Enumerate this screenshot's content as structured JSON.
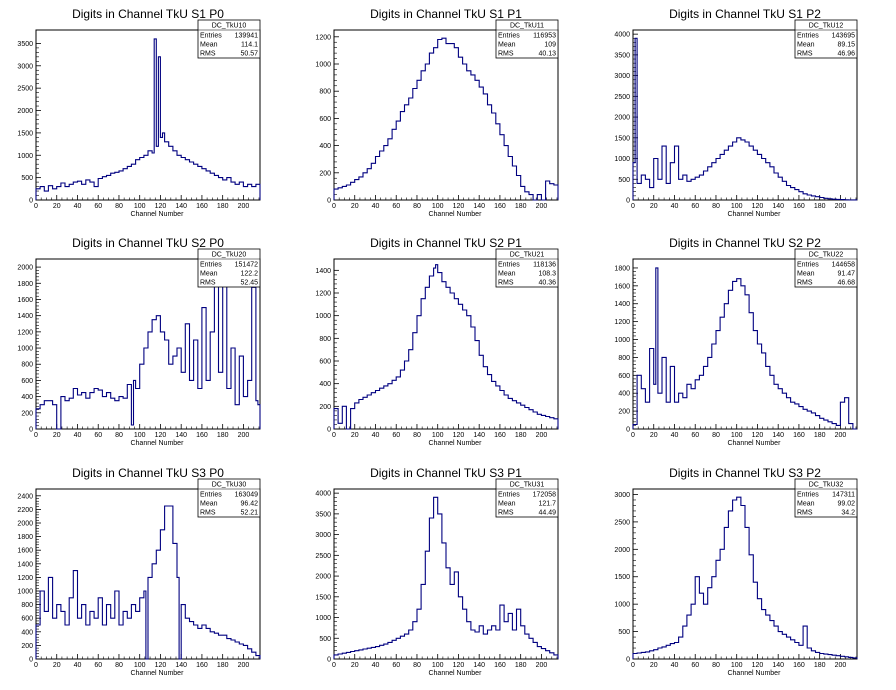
{
  "chart_data": [
    {
      "type": "histogram",
      "title": "Digits in Channel TkU S1 P0",
      "xlabel": "Channel Number",
      "ylabel": "",
      "xlim": [
        0,
        216
      ],
      "ylim": [
        0,
        3800
      ],
      "xticks": [
        0,
        20,
        40,
        60,
        80,
        100,
        120,
        140,
        160,
        180,
        200
      ],
      "yticks": [
        0,
        500,
        1000,
        1500,
        2000,
        2500,
        3000,
        3500
      ],
      "stats": {
        "name": "DC_TkU10",
        "entries": "139941",
        "mean": "114.1",
        "rms": "50.57"
      },
      "x": [
        0,
        4,
        8,
        12,
        16,
        20,
        24,
        28,
        32,
        36,
        40,
        44,
        48,
        52,
        56,
        60,
        64,
        68,
        72,
        76,
        80,
        84,
        88,
        92,
        96,
        100,
        104,
        108,
        112,
        114,
        116,
        118,
        120,
        122,
        124,
        128,
        132,
        136,
        140,
        144,
        148,
        152,
        156,
        160,
        164,
        168,
        172,
        176,
        180,
        184,
        188,
        192,
        196,
        200,
        204,
        208,
        212
      ],
      "values": [
        250,
        300,
        200,
        320,
        250,
        300,
        380,
        300,
        350,
        400,
        420,
        350,
        450,
        400,
        300,
        480,
        520,
        550,
        600,
        620,
        650,
        700,
        750,
        800,
        900,
        950,
        1000,
        1100,
        1050,
        3600,
        1200,
        3200,
        1400,
        1500,
        1300,
        1200,
        1100,
        1000,
        950,
        900,
        850,
        800,
        750,
        700,
        650,
        600,
        550,
        500,
        450,
        500,
        400,
        350,
        400,
        300,
        350,
        300,
        350
      ]
    },
    {
      "type": "histogram",
      "title": "Digits in Channel TkU S1 P1",
      "xlabel": "Channel Number",
      "ylabel": "",
      "xlim": [
        0,
        216
      ],
      "ylim": [
        0,
        1250
      ],
      "xticks": [
        0,
        20,
        40,
        60,
        80,
        100,
        120,
        140,
        160,
        180,
        200
      ],
      "yticks": [
        0,
        200,
        400,
        600,
        800,
        1000,
        1200
      ],
      "stats": {
        "name": "DC_TkU11",
        "entries": "116953",
        "mean": "109",
        "rms": "40.13"
      },
      "x": [
        0,
        4,
        8,
        12,
        16,
        20,
        24,
        28,
        32,
        36,
        40,
        44,
        48,
        52,
        56,
        60,
        64,
        68,
        72,
        76,
        80,
        84,
        88,
        92,
        96,
        100,
        104,
        108,
        112,
        116,
        120,
        124,
        128,
        132,
        136,
        140,
        144,
        148,
        152,
        156,
        160,
        164,
        168,
        172,
        176,
        180,
        184,
        188,
        192,
        196,
        200,
        204,
        208,
        212
      ],
      "values": [
        80,
        90,
        100,
        110,
        130,
        150,
        170,
        200,
        230,
        270,
        320,
        360,
        400,
        450,
        520,
        580,
        650,
        700,
        750,
        820,
        880,
        950,
        1000,
        1080,
        1120,
        1180,
        1190,
        1150,
        1150,
        1120,
        1050,
        1000,
        950,
        920,
        880,
        830,
        780,
        700,
        640,
        560,
        480,
        400,
        320,
        250,
        180,
        100,
        60,
        40,
        0,
        40,
        0,
        140,
        120,
        110
      ]
    },
    {
      "type": "histogram",
      "title": "Digits in Channel TkU S1 P2",
      "xlabel": "Channel Number",
      "ylabel": "",
      "xlim": [
        0,
        216
      ],
      "ylim": [
        0,
        4100
      ],
      "xticks": [
        0,
        20,
        40,
        60,
        80,
        100,
        120,
        140,
        160,
        180,
        200
      ],
      "yticks": [
        0,
        500,
        1000,
        1500,
        2000,
        2500,
        3000,
        3500,
        4000
      ],
      "stats": {
        "name": "DC_TkU12",
        "entries": "143695",
        "mean": "89.15",
        "rms": "46.96"
      },
      "x": [
        0,
        2,
        4,
        8,
        12,
        16,
        20,
        24,
        28,
        32,
        36,
        40,
        44,
        48,
        52,
        56,
        60,
        64,
        68,
        72,
        76,
        80,
        84,
        88,
        92,
        96,
        100,
        104,
        108,
        112,
        116,
        120,
        124,
        128,
        132,
        136,
        140,
        144,
        148,
        152,
        156,
        160,
        164,
        168,
        172,
        176,
        180,
        184,
        188,
        192,
        196,
        200,
        204,
        208
      ],
      "values": [
        900,
        3900,
        400,
        600,
        500,
        300,
        1000,
        500,
        1300,
        400,
        900,
        1300,
        500,
        600,
        450,
        500,
        550,
        600,
        700,
        800,
        900,
        1000,
        1100,
        1200,
        1300,
        1400,
        1500,
        1450,
        1400,
        1300,
        1200,
        1100,
        1000,
        900,
        800,
        650,
        550,
        450,
        350,
        300,
        250,
        200,
        150,
        120,
        100,
        80,
        60,
        40,
        30,
        20,
        15,
        10,
        5,
        2
      ]
    },
    {
      "type": "histogram",
      "title": "Digits in Channel TkU S2 P0",
      "xlabel": "Channel Number",
      "ylabel": "",
      "xlim": [
        0,
        216
      ],
      "ylim": [
        0,
        2100
      ],
      "xticks": [
        0,
        20,
        40,
        60,
        80,
        100,
        120,
        140,
        160,
        180,
        200
      ],
      "yticks": [
        0,
        200,
        400,
        600,
        800,
        1000,
        1200,
        1400,
        1600,
        1800,
        2000
      ],
      "stats": {
        "name": "DC_TkU20",
        "entries": "151472",
        "mean": "122.2",
        "rms": "52.45"
      },
      "x": [
        0,
        4,
        8,
        12,
        16,
        20,
        24,
        28,
        32,
        36,
        40,
        44,
        48,
        52,
        56,
        60,
        64,
        68,
        72,
        76,
        80,
        84,
        88,
        92,
        94,
        96,
        100,
        104,
        108,
        112,
        116,
        120,
        124,
        128,
        132,
        136,
        140,
        144,
        148,
        152,
        156,
        160,
        164,
        168,
        172,
        176,
        180,
        184,
        188,
        192,
        196,
        200,
        204,
        208,
        212,
        214
      ],
      "values": [
        250,
        300,
        350,
        350,
        300,
        0,
        400,
        350,
        380,
        500,
        420,
        450,
        380,
        450,
        500,
        480,
        400,
        450,
        380,
        350,
        400,
        380,
        550,
        50,
        600,
        500,
        800,
        1000,
        1200,
        1350,
        1400,
        1200,
        1100,
        800,
        900,
        1000,
        700,
        1300,
        600,
        1100,
        500,
        1500,
        600,
        1200,
        1950,
        700,
        1800,
        500,
        1000,
        300,
        900,
        400,
        600,
        1750,
        350,
        300
      ]
    },
    {
      "type": "histogram",
      "title": "Digits in Channel TkU S2 P1",
      "xlabel": "Channel Number",
      "ylabel": "",
      "xlim": [
        0,
        216
      ],
      "ylim": [
        0,
        1500
      ],
      "xticks": [
        0,
        20,
        40,
        60,
        80,
        100,
        120,
        140,
        160,
        180,
        200
      ],
      "yticks": [
        0,
        200,
        400,
        600,
        800,
        1000,
        1200,
        1400
      ],
      "stats": {
        "name": "DC_TkU21",
        "entries": "118136",
        "mean": "108.3",
        "rms": "40.36"
      },
      "x": [
        0,
        4,
        8,
        12,
        16,
        20,
        24,
        28,
        32,
        36,
        40,
        44,
        48,
        52,
        56,
        60,
        64,
        68,
        72,
        76,
        80,
        84,
        88,
        92,
        96,
        98,
        100,
        104,
        108,
        112,
        116,
        120,
        124,
        128,
        132,
        136,
        140,
        144,
        148,
        152,
        156,
        160,
        164,
        168,
        172,
        176,
        180,
        184,
        188,
        192,
        196,
        200,
        204,
        208,
        212
      ],
      "values": [
        180,
        50,
        200,
        0,
        180,
        230,
        260,
        280,
        300,
        320,
        340,
        360,
        380,
        400,
        430,
        460,
        520,
        600,
        700,
        850,
        1000,
        1150,
        1250,
        1350,
        1420,
        1450,
        1380,
        1300,
        1250,
        1200,
        1150,
        1100,
        1050,
        1000,
        900,
        780,
        650,
        550,
        480,
        420,
        380,
        340,
        300,
        270,
        250,
        230,
        210,
        190,
        170,
        150,
        130,
        120,
        110,
        100,
        90
      ]
    },
    {
      "type": "histogram",
      "title": "Digits in Channel TkU S2 P2",
      "xlabel": "Channel Number",
      "ylabel": "",
      "xlim": [
        0,
        216
      ],
      "ylim": [
        0,
        1900
      ],
      "xticks": [
        0,
        20,
        40,
        60,
        80,
        100,
        120,
        140,
        160,
        180,
        200
      ],
      "yticks": [
        0,
        200,
        400,
        600,
        800,
        1000,
        1200,
        1400,
        1600,
        1800
      ],
      "stats": {
        "name": "DC_TkU22",
        "entries": "144658",
        "mean": "91.47",
        "rms": "46.68"
      },
      "x": [
        0,
        4,
        8,
        12,
        16,
        20,
        22,
        24,
        28,
        32,
        36,
        40,
        44,
        48,
        52,
        56,
        60,
        64,
        68,
        72,
        76,
        80,
        84,
        88,
        92,
        96,
        100,
        104,
        108,
        112,
        116,
        120,
        124,
        128,
        132,
        136,
        140,
        144,
        148,
        152,
        156,
        160,
        164,
        168,
        172,
        176,
        180,
        184,
        188,
        192,
        196,
        200,
        204,
        208,
        212
      ],
      "values": [
        50,
        600,
        450,
        300,
        900,
        500,
        1800,
        400,
        800,
        300,
        700,
        300,
        400,
        350,
        500,
        450,
        550,
        600,
        700,
        800,
        950,
        1100,
        1250,
        1400,
        1550,
        1650,
        1680,
        1600,
        1500,
        1300,
        1100,
        950,
        850,
        700,
        600,
        500,
        450,
        400,
        350,
        300,
        280,
        250,
        220,
        200,
        180,
        150,
        120,
        100,
        80,
        60,
        40,
        300,
        350,
        60,
        0
      ]
    },
    {
      "type": "histogram",
      "title": "Digits in Channel TkU S3 P0",
      "xlabel": "Channel Number",
      "ylabel": "",
      "xlim": [
        0,
        216
      ],
      "ylim": [
        0,
        2500
      ],
      "xticks": [
        0,
        20,
        40,
        60,
        80,
        100,
        120,
        140,
        160,
        180,
        200
      ],
      "yticks": [
        0,
        200,
        400,
        600,
        800,
        1000,
        1200,
        1400,
        1600,
        1800,
        2000,
        2200,
        2400
      ],
      "stats": {
        "name": "DC_TkU30",
        "entries": "163049",
        "mean": "96.42",
        "rms": "52.21"
      },
      "x": [
        0,
        4,
        8,
        12,
        16,
        20,
        24,
        28,
        32,
        36,
        40,
        44,
        48,
        52,
        56,
        60,
        64,
        68,
        72,
        76,
        80,
        84,
        88,
        92,
        96,
        100,
        104,
        106,
        108,
        112,
        116,
        120,
        124,
        128,
        132,
        136,
        138,
        140,
        144,
        148,
        152,
        156,
        160,
        164,
        168,
        172,
        176,
        180,
        184,
        188,
        192,
        196,
        200,
        204,
        208,
        212
      ],
      "values": [
        500,
        1000,
        700,
        1200,
        600,
        800,
        700,
        500,
        900,
        1300,
        600,
        800,
        500,
        700,
        600,
        900,
        500,
        800,
        600,
        1000,
        500,
        700,
        600,
        800,
        700,
        900,
        1000,
        0,
        1200,
        1400,
        1600,
        1900,
        2250,
        2250,
        1700,
        1200,
        0,
        800,
        600,
        550,
        500,
        450,
        500,
        450,
        400,
        380,
        350,
        350,
        300,
        280,
        250,
        220,
        200,
        150,
        100,
        50
      ]
    },
    {
      "type": "histogram",
      "title": "Digits in Channel TkU S3 P1",
      "xlabel": "Channel Number",
      "ylabel": "",
      "xlim": [
        0,
        216
      ],
      "ylim": [
        0,
        4100
      ],
      "xticks": [
        0,
        20,
        40,
        60,
        80,
        100,
        120,
        140,
        160,
        180,
        200
      ],
      "yticks": [
        0,
        500,
        1000,
        1500,
        2000,
        2500,
        3000,
        3500,
        4000
      ],
      "stats": {
        "name": "DC_TkU31",
        "entries": "172058",
        "mean": "121.7",
        "rms": "44.49"
      },
      "x": [
        0,
        4,
        8,
        12,
        16,
        20,
        24,
        28,
        32,
        36,
        40,
        44,
        48,
        52,
        56,
        60,
        64,
        68,
        72,
        76,
        80,
        84,
        88,
        92,
        96,
        100,
        104,
        108,
        112,
        116,
        120,
        124,
        128,
        132,
        136,
        140,
        144,
        148,
        152,
        156,
        160,
        164,
        168,
        172,
        176,
        180,
        184,
        188,
        192,
        196,
        200,
        204,
        208,
        212
      ],
      "values": [
        100,
        120,
        140,
        160,
        180,
        200,
        220,
        240,
        260,
        280,
        300,
        330,
        360,
        400,
        450,
        500,
        550,
        600,
        700,
        900,
        1200,
        1800,
        2600,
        3400,
        3900,
        3500,
        2800,
        2200,
        1800,
        2100,
        1500,
        1200,
        900,
        700,
        650,
        800,
        600,
        700,
        800,
        700,
        1300,
        900,
        1100,
        700,
        1200,
        800,
        600,
        500,
        400,
        300,
        250,
        200,
        150,
        100
      ]
    },
    {
      "type": "histogram",
      "title": "Digits in Channel TkU S3 P2",
      "xlabel": "Channel Number",
      "ylabel": "",
      "xlim": [
        0,
        216
      ],
      "ylim": [
        0,
        3100
      ],
      "xticks": [
        0,
        20,
        40,
        60,
        80,
        100,
        120,
        140,
        160,
        180,
        200
      ],
      "yticks": [
        0,
        500,
        1000,
        1500,
        2000,
        2500,
        3000
      ],
      "stats": {
        "name": "DC_TkU32",
        "entries": "147311",
        "mean": "99.02",
        "rms": "34.2"
      },
      "x": [
        0,
        4,
        8,
        12,
        16,
        20,
        24,
        28,
        32,
        36,
        40,
        44,
        48,
        52,
        56,
        60,
        64,
        68,
        72,
        76,
        80,
        84,
        88,
        92,
        96,
        100,
        104,
        108,
        112,
        116,
        120,
        124,
        128,
        132,
        136,
        140,
        144,
        148,
        152,
        156,
        160,
        164,
        168,
        172,
        176,
        180,
        184,
        188,
        192,
        196,
        200,
        204,
        208,
        212
      ],
      "values": [
        100,
        110,
        120,
        130,
        150,
        170,
        200,
        220,
        250,
        280,
        300,
        400,
        600,
        800,
        1000,
        1500,
        1200,
        1000,
        1300,
        1500,
        1800,
        2000,
        2400,
        2700,
        2900,
        2950,
        2800,
        2400,
        1900,
        1400,
        1100,
        900,
        800,
        700,
        600,
        500,
        450,
        400,
        350,
        300,
        250,
        600,
        200,
        150,
        120,
        100,
        90,
        80,
        70,
        60,
        50,
        40,
        30,
        20
      ]
    }
  ]
}
